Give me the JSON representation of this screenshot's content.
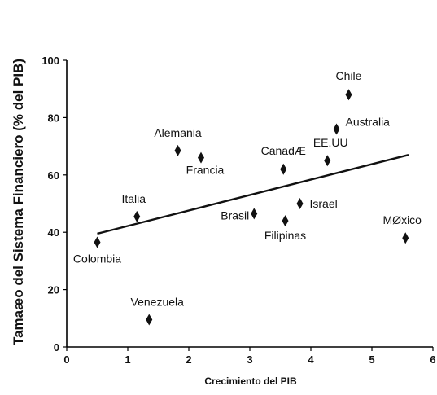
{
  "chart_data": {
    "type": "scatter",
    "xlabel": "Crecimiento del PIB",
    "ylabel": "Tamaæo del Sistema Financiero (% del PIB)",
    "xlim": [
      0,
      6
    ],
    "ylim": [
      0,
      100
    ],
    "xticks": [
      0,
      1,
      2,
      3,
      4,
      5,
      6
    ],
    "yticks": [
      0,
      20,
      40,
      60,
      80,
      100
    ],
    "x_tick_labels": [
      "0",
      "1",
      "2",
      "3",
      "4",
      "5",
      "6"
    ],
    "y_tick_labels": [
      "0",
      "20",
      "40",
      "60",
      "80",
      "100"
    ],
    "marker": "diamond",
    "grid": false,
    "points": [
      {
        "label": "Chile",
        "x": 4.62,
        "y": 88
      },
      {
        "label": "Australia",
        "x": 4.42,
        "y": 76
      },
      {
        "label": "Alemania",
        "x": 1.82,
        "y": 68.5
      },
      {
        "label": "Francia",
        "x": 2.2,
        "y": 66
      },
      {
        "label": "EE.UU",
        "x": 4.27,
        "y": 65
      },
      {
        "label": "CanadÆ",
        "x": 3.55,
        "y": 62
      },
      {
        "label": "Israel",
        "x": 3.82,
        "y": 50
      },
      {
        "label": "Brasil",
        "x": 3.07,
        "y": 46.5
      },
      {
        "label": "Italia",
        "x": 1.15,
        "y": 45.5
      },
      {
        "label": "Filipinas",
        "x": 3.58,
        "y": 44
      },
      {
        "label": "MØxico",
        "x": 5.55,
        "y": 38
      },
      {
        "label": "Colombia",
        "x": 0.5,
        "y": 36.5
      },
      {
        "label": "Venezuela",
        "x": 1.35,
        "y": 9.5
      }
    ],
    "trendline": {
      "x": [
        0.5,
        5.6
      ],
      "y": [
        39.5,
        67
      ]
    }
  }
}
